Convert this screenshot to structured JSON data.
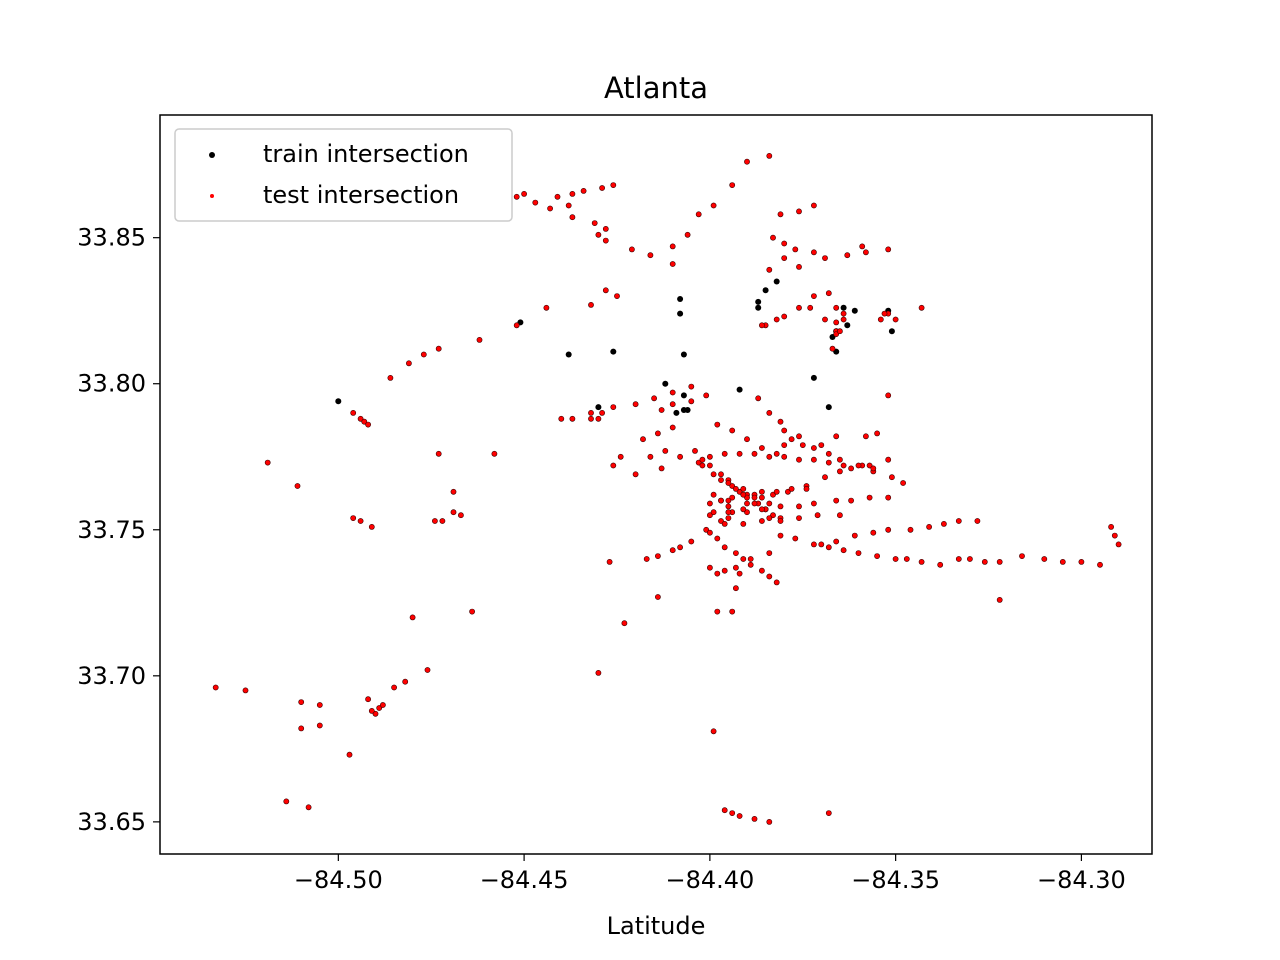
{
  "chart_data": {
    "type": "scatter",
    "title": "Atlanta",
    "xlabel": "Latitude",
    "ylabel": "",
    "xlim": [
      -84.548,
      -84.281
    ],
    "ylim": [
      33.639,
      33.892
    ],
    "xticks": [
      -84.5,
      -84.45,
      -84.4,
      -84.35,
      -84.3
    ],
    "xtick_labels": [
      "−84.50",
      "−84.45",
      "−84.40",
      "−84.35",
      "−84.30"
    ],
    "yticks": [
      33.65,
      33.7,
      33.75,
      33.8,
      33.85
    ],
    "ytick_labels": [
      "33.65",
      "33.70",
      "33.75",
      "33.80",
      "33.85"
    ],
    "grid": false,
    "legend_position": "top-left",
    "series": [
      {
        "name": "train intersection",
        "color": "#000000",
        "x": [
          -84.5,
          -84.451,
          -84.438,
          -84.426,
          -84.43,
          -84.408,
          -84.408,
          -84.407,
          -84.407,
          -84.407,
          -84.406,
          -84.392,
          -84.387,
          -84.382,
          -84.387,
          -84.385,
          -84.372,
          -84.367,
          -84.366,
          -84.366,
          -84.364,
          -84.352,
          -84.363,
          -84.361,
          -84.351,
          -84.368,
          -84.412,
          -84.409
        ],
        "y": [
          33.794,
          33.821,
          33.81,
          33.811,
          33.792,
          33.829,
          33.824,
          33.81,
          33.796,
          33.791,
          33.791,
          33.798,
          33.828,
          33.835,
          33.826,
          33.832,
          33.802,
          33.816,
          33.818,
          33.811,
          33.826,
          33.825,
          33.82,
          33.825,
          33.818,
          33.792,
          33.8,
          33.79
        ]
      },
      {
        "name": "test intersection",
        "color": "#ff0000",
        "x": [
          -84.533,
          -84.525,
          -84.514,
          -84.51,
          -84.508,
          -84.51,
          -84.505,
          -84.505,
          -84.497,
          -84.519,
          -84.511,
          -84.496,
          -84.494,
          -84.493,
          -84.492,
          -84.491,
          -84.49,
          -84.489,
          -84.488,
          -84.485,
          -84.482,
          -84.48,
          -84.476,
          -84.473,
          -84.472,
          -84.469,
          -84.467,
          -84.464,
          -84.458,
          -84.496,
          -84.494,
          -84.491,
          -84.492,
          -84.486,
          -84.481,
          -84.477,
          -84.473,
          -84.474,
          -84.469,
          -84.45,
          -84.441,
          -84.437,
          -84.434,
          -84.429,
          -84.426,
          -84.424,
          -84.432,
          -84.43,
          -84.429,
          -84.426,
          -84.423,
          -84.417,
          -84.414,
          -84.414,
          -84.41,
          -84.408,
          -84.405,
          -84.401,
          -84.397,
          -84.394,
          -84.39,
          -84.386,
          -84.383,
          -84.379,
          -84.374,
          -84.369,
          -84.365,
          -84.362,
          -84.357,
          -84.352,
          -84.399,
          -84.396,
          -84.394,
          -84.392,
          -84.388,
          -84.384,
          -84.381,
          -84.377,
          -84.372,
          -84.368,
          -84.364,
          -84.36,
          -84.355,
          -84.35,
          -84.347,
          -84.343,
          -84.338,
          -84.333,
          -84.33,
          -84.326,
          -84.322,
          -84.316,
          -84.31,
          -84.305,
          -84.3,
          -84.295,
          -84.292,
          -84.291,
          -84.29,
          -84.4,
          -84.396,
          -84.392,
          -84.398,
          -84.394,
          -84.393,
          -84.368,
          -84.398,
          -84.393,
          -84.389,
          -84.384,
          -84.37,
          -84.366,
          -84.361,
          -84.356,
          -84.352,
          -84.346,
          -84.341,
          -84.337,
          -84.333,
          -84.328,
          -84.322,
          -84.44,
          -84.432,
          -84.426,
          -84.42,
          -84.415,
          -84.41,
          -84.405,
          -84.437,
          -84.413,
          -84.41,
          -84.405,
          -84.401,
          -84.387,
          -84.384,
          -84.381,
          -84.38,
          -84.378,
          -84.372,
          -84.368,
          -84.365,
          -84.359,
          -84.356,
          -84.351,
          -84.348,
          -84.418,
          -84.414,
          -84.41,
          -84.42,
          -84.413,
          -84.403,
          -84.4,
          -84.396,
          -84.392,
          -84.388,
          -84.384,
          -84.38,
          -84.376,
          -84.372,
          -84.368,
          -84.364,
          -84.36,
          -84.356,
          -84.412,
          -84.416,
          -84.408,
          -84.38,
          -84.375,
          -84.37,
          -84.376,
          -84.366,
          -84.358,
          -84.355,
          -84.4,
          -84.397,
          -84.394,
          -84.39,
          -84.386,
          -84.382,
          -84.378,
          -84.374,
          -84.4,
          -84.395,
          -84.39,
          -84.385,
          -84.381,
          -84.376,
          -84.372,
          -84.366,
          -84.362,
          -84.357,
          -84.352,
          -84.396,
          -84.391,
          -84.386,
          -84.381,
          -84.376,
          -84.371,
          -84.365,
          -84.4,
          -84.398,
          -84.396,
          -84.393,
          -84.391,
          -84.389,
          -84.386,
          -84.384,
          -84.382,
          -84.402,
          -84.399,
          -84.397,
          -84.394,
          -84.392,
          -84.39,
          -84.387,
          -84.385,
          -84.383,
          -84.381,
          -84.404,
          -84.402,
          -84.4,
          -84.397,
          -84.395,
          -84.393,
          -84.391,
          -84.388,
          -84.386,
          -84.384,
          -84.398,
          -84.394,
          -84.39,
          -84.386,
          -84.382,
          -84.395,
          -84.391,
          -84.388,
          -84.384,
          -84.399,
          -84.397,
          -84.395,
          -84.399,
          -84.395,
          -84.388,
          -84.391,
          -84.395,
          -84.427,
          -84.43,
          -84.452,
          -84.447,
          -84.443,
          -84.438,
          -84.437,
          -84.431,
          -84.428,
          -84.43,
          -84.428,
          -84.421,
          -84.416,
          -84.41,
          -84.432,
          -84.428,
          -84.425,
          -84.41,
          -84.406,
          -84.403,
          -84.399,
          -84.394,
          -84.39,
          -84.384,
          -84.38,
          -84.376,
          -84.383,
          -84.38,
          -84.377,
          -84.372,
          -84.369,
          -84.363,
          -84.358,
          -84.352,
          -84.381,
          -84.376,
          -84.372,
          -84.359,
          -84.385,
          -84.38,
          -84.376,
          -84.372,
          -84.368,
          -84.366,
          -84.366,
          -84.366,
          -84.367,
          -84.366,
          -84.352,
          -84.35,
          -84.343,
          -84.386,
          -84.382,
          -84.365,
          -84.369,
          -84.373,
          -84.364,
          -84.354,
          -84.352,
          -84.384,
          -84.353,
          -84.364,
          -84.462,
          -84.444,
          -84.452
        ],
        "y": [
          33.696,
          33.695,
          33.657,
          33.691,
          33.655,
          33.682,
          33.683,
          33.69,
          33.673,
          33.773,
          33.765,
          33.79,
          33.788,
          33.787,
          33.786,
          33.751,
          33.687,
          33.689,
          33.69,
          33.696,
          33.698,
          33.72,
          33.702,
          33.776,
          33.753,
          33.763,
          33.755,
          33.722,
          33.776,
          33.754,
          33.753,
          33.688,
          33.692,
          33.802,
          33.807,
          33.81,
          33.812,
          33.753,
          33.756,
          33.865,
          33.864,
          33.865,
          33.866,
          33.867,
          33.868,
          33.775,
          33.788,
          33.788,
          33.79,
          33.772,
          33.718,
          33.74,
          33.741,
          33.727,
          33.743,
          33.744,
          33.746,
          33.75,
          33.753,
          33.756,
          33.759,
          33.761,
          33.762,
          33.763,
          33.765,
          33.768,
          33.77,
          33.771,
          33.772,
          33.774,
          33.681,
          33.654,
          33.653,
          33.652,
          33.651,
          33.65,
          33.748,
          33.747,
          33.745,
          33.744,
          33.743,
          33.742,
          33.741,
          33.74,
          33.74,
          33.739,
          33.738,
          33.74,
          33.74,
          33.739,
          33.739,
          33.741,
          33.74,
          33.739,
          33.739,
          33.738,
          33.751,
          33.748,
          33.745,
          33.737,
          33.736,
          33.735,
          33.722,
          33.722,
          33.73,
          33.653,
          33.735,
          33.737,
          33.74,
          33.742,
          33.745,
          33.746,
          33.748,
          33.749,
          33.75,
          33.75,
          33.751,
          33.752,
          33.753,
          33.753,
          33.726,
          33.788,
          33.79,
          33.792,
          33.793,
          33.795,
          33.797,
          33.799,
          33.788,
          33.791,
          33.793,
          33.794,
          33.796,
          33.795,
          33.79,
          33.787,
          33.784,
          33.781,
          33.778,
          33.776,
          33.774,
          33.772,
          33.77,
          33.768,
          33.766,
          33.781,
          33.783,
          33.785,
          33.769,
          33.771,
          33.773,
          33.775,
          33.776,
          33.776,
          33.776,
          33.775,
          33.775,
          33.774,
          33.774,
          33.773,
          33.772,
          33.772,
          33.771,
          33.777,
          33.775,
          33.775,
          33.779,
          33.779,
          33.779,
          33.782,
          33.782,
          33.782,
          33.783,
          33.759,
          33.76,
          33.761,
          33.762,
          33.763,
          33.763,
          33.764,
          33.764,
          33.755,
          33.756,
          33.756,
          33.757,
          33.758,
          33.758,
          33.759,
          33.76,
          33.76,
          33.761,
          33.761,
          33.752,
          33.752,
          33.753,
          33.754,
          33.754,
          33.755,
          33.755,
          33.749,
          33.747,
          33.744,
          33.742,
          33.74,
          33.738,
          33.736,
          33.734,
          33.732,
          33.772,
          33.769,
          33.767,
          33.765,
          33.763,
          33.761,
          33.759,
          33.757,
          33.755,
          33.753,
          33.777,
          33.774,
          33.772,
          33.769,
          33.767,
          33.764,
          33.762,
          33.759,
          33.757,
          33.754,
          33.786,
          33.784,
          33.781,
          33.778,
          33.776,
          33.766,
          33.764,
          33.762,
          33.759,
          33.762,
          33.76,
          33.758,
          33.756,
          33.754,
          33.761,
          33.757,
          33.76,
          33.739,
          33.701,
          33.864,
          33.862,
          33.86,
          33.861,
          33.857,
          33.855,
          33.853,
          33.851,
          33.849,
          33.846,
          33.844,
          33.841,
          33.827,
          33.832,
          33.83,
          33.847,
          33.851,
          33.858,
          33.861,
          33.868,
          33.876,
          33.878,
          33.843,
          33.84,
          33.85,
          33.848,
          33.846,
          33.845,
          33.843,
          33.844,
          33.845,
          33.846,
          33.858,
          33.859,
          33.861,
          33.847,
          33.82,
          33.823,
          33.826,
          33.83,
          33.831,
          33.826,
          33.821,
          33.818,
          33.812,
          33.817,
          33.824,
          33.822,
          33.826,
          33.82,
          33.822,
          33.818,
          33.822,
          33.826,
          33.822,
          33.822,
          33.796,
          33.839,
          33.824,
          33.824,
          33.815,
          33.826,
          33.82
        ]
      }
    ]
  }
}
